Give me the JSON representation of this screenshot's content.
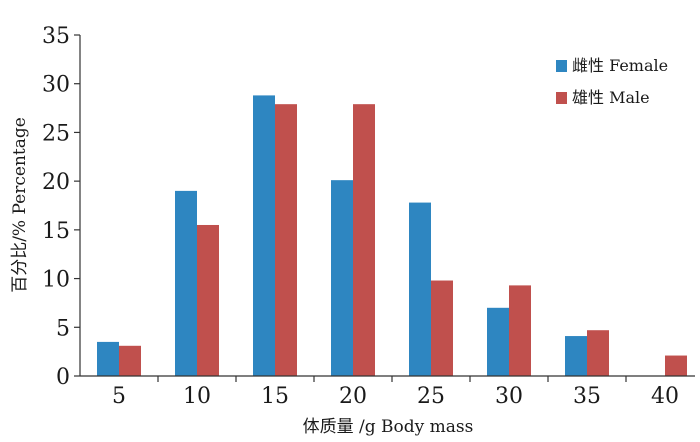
{
  "chart_data": {
    "type": "bar",
    "categories": [
      "5",
      "10",
      "15",
      "20",
      "25",
      "30",
      "35",
      "40"
    ],
    "series": [
      {
        "name": "雌性 Female",
        "color": "#2e86c1",
        "values": [
          3.5,
          19.0,
          28.8,
          20.1,
          17.8,
          7.0,
          4.1,
          0
        ]
      },
      {
        "name": "雄性 Male",
        "color": "#c0504d",
        "values": [
          3.1,
          15.5,
          27.9,
          27.9,
          9.8,
          9.3,
          4.7,
          2.1
        ]
      }
    ],
    "xlabel": "体质量 /g  Body mass",
    "ylabel": "百分比/%  Percentage",
    "ylim": [
      0,
      35
    ],
    "yticks": [
      0,
      5,
      10,
      15,
      20,
      25,
      30,
      35
    ],
    "grid": false,
    "legend_position": "top-right"
  }
}
